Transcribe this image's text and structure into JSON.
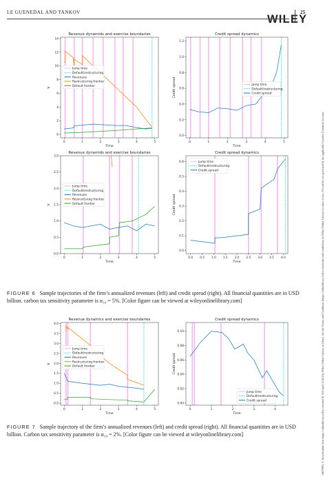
{
  "header": {
    "running_head": "LE GUENEDAL AND TANKOV",
    "publisher": "WILEY",
    "page_number": "25"
  },
  "side_note": "14679965, 0, Downloaded from https://onlinelibrary.wiley.com/doi/10.1111/mafi.12414 by Wiley Online Library on [date]. See the Terms and Conditions (https://onlinelibrary.wiley.com/terms-and-conditions) on Wiley Online Library for rules of use; OA articles are governed by the applicable Creative Commons License",
  "figure6": {
    "label": "FIGURE 6",
    "caption": "Sample trajectories of the firm’s annualized revenues (left) and credit spread (right). All financial quantities are in USD billion. carbon tax sensitivity parameter is α₁₀ = 5%. [Color figure can be viewed at wileyonlinelibrary.com]"
  },
  "figure7": {
    "label": "FIGURE 7",
    "caption": "Sample trajectory of the firm’s annualized revenues (left) and credit spread (right). All financial quantities are in USD billion. Carbon tax sensitivity parameter is α₁₀ = 2%. [Color figure can be viewed at wileyonlinelibrary.com]"
  },
  "colors": {
    "jump": "#f4b6f2",
    "default_restructuring": "#33ddee",
    "revenues": "#1f77b4",
    "restructuring": "#ff7f0e",
    "default": "#2ca02c"
  },
  "chart_data": [
    {
      "id": "fig6-top-left",
      "type": "line",
      "title": "Revenue dynamids and exercise boundaries",
      "xlabel": "Time",
      "ylabel": "V",
      "xlim": [
        -0.2,
        5.2
      ],
      "ylim": [
        -0.5,
        14.2
      ],
      "xticks": [
        0,
        1,
        2,
        3,
        4,
        5
      ],
      "yticks": [
        0,
        2,
        4,
        6,
        8,
        10,
        12,
        14
      ],
      "jump_times": [
        0.05,
        0.55,
        1.0,
        1.6,
        2.15,
        2.8,
        3.25,
        3.8
      ],
      "default_time": 4.85,
      "legend": [
        "Jump time",
        "Default/restructuring",
        "Revenues",
        "Restructuring frontier",
        "Default frontier"
      ],
      "series": [
        {
          "role": "revenues",
          "x": [
            0,
            0.5,
            0.55,
            1.0,
            1.6,
            2.2,
            2.8,
            3.4,
            4.0,
            4.5,
            4.85
          ],
          "y": [
            0.8,
            0.95,
            1.25,
            1.35,
            1.5,
            1.4,
            1.3,
            1.3,
            1.0,
            0.8,
            0.9
          ]
        },
        {
          "role": "restructuring",
          "x": [
            0,
            0.05,
            0.05,
            0.5,
            0.55,
            0.55,
            1.0,
            1.0,
            2.0,
            3.0,
            4.0,
            4.5,
            4.85
          ],
          "y": [
            10.5,
            10.5,
            12.2,
            11.2,
            9.8,
            11.0,
            10.2,
            11.5,
            9.0,
            6.5,
            4.0,
            2.2,
            1.1
          ]
        },
        {
          "role": "default",
          "x": [
            0,
            0.5,
            1.0,
            2.0,
            3.0,
            4.0,
            4.85
          ],
          "y": [
            0.2,
            0.25,
            0.3,
            0.45,
            0.6,
            0.8,
            0.95
          ]
        }
      ]
    },
    {
      "id": "fig6-top-right",
      "type": "line",
      "title": "Credit spread dynamics",
      "xlabel": "Time",
      "ylabel": "Credit spread",
      "xlim": [
        -0.2,
        5.2
      ],
      "ylim": [
        -0.03,
        1.25
      ],
      "xticks": [
        0,
        1,
        2,
        3,
        4,
        5
      ],
      "yticks": [
        0.0,
        0.2,
        0.4,
        0.6,
        0.8,
        1.0,
        1.2
      ],
      "jump_times": [
        0.05,
        0.55,
        1.0,
        1.6,
        2.15,
        2.8,
        3.25,
        3.8
      ],
      "default_time": 4.85,
      "legend": [
        "Jump time",
        "Default/restructuring",
        "Credit spread"
      ],
      "series": [
        {
          "role": "credit",
          "x": [
            0,
            0.5,
            1.0,
            1.5,
            2.0,
            2.5,
            3.0,
            3.5,
            4.0,
            4.3,
            4.6,
            4.85
          ],
          "y": [
            0.33,
            0.3,
            0.29,
            0.35,
            0.34,
            0.32,
            0.38,
            0.4,
            0.55,
            0.62,
            0.8,
            1.15
          ]
        }
      ]
    },
    {
      "id": "fig6-bottom-left",
      "type": "line",
      "title": "Revenue dynamids and exercise boundaries",
      "xlabel": "Time",
      "ylabel": "V",
      "xlim": [
        -0.2,
        5.2
      ],
      "ylim": [
        0,
        3.0
      ],
      "xticks": [
        0,
        1,
        2,
        3,
        4,
        5
      ],
      "yticks": [
        0.0,
        0.5,
        1.0,
        1.5,
        2.0,
        2.5,
        3.0
      ],
      "jump_times": [
        1.05,
        2.5,
        3.05,
        3.75
      ],
      "default_time": 4.1,
      "legend": [
        "Jump time",
        "Default/restructuring",
        "Revenues",
        "Restructuring frontier",
        "Default frontier"
      ],
      "series": [
        {
          "role": "revenues",
          "x": [
            0,
            0.5,
            1.0,
            1.5,
            2.0,
            2.5,
            3.0,
            3.5,
            4.0,
            4.5,
            5.0
          ],
          "y": [
            0.95,
            0.85,
            0.8,
            0.85,
            0.9,
            0.75,
            0.8,
            0.85,
            0.7,
            0.9,
            0.85
          ]
        },
        {
          "role": "restructuring",
          "x": [
            2.6,
            2.65
          ],
          "y": [
            3.0,
            2.65
          ]
        },
        {
          "role": "default",
          "x": [
            0,
            1.0,
            1.05,
            2.5,
            2.5,
            3.0,
            3.05,
            3.75,
            3.75,
            4.5,
            5.0
          ],
          "y": [
            0.15,
            0.15,
            0.2,
            0.3,
            0.5,
            0.55,
            0.95,
            1.0,
            1.0,
            1.2,
            1.45
          ]
        }
      ]
    },
    {
      "id": "fig6-bottom-right",
      "type": "line",
      "title": "Credit spread dynamics",
      "xlabel": "Time",
      "ylabel": "Credit spread",
      "xlim": [
        -0.2,
        4.2
      ],
      "ylim": [
        -0.02,
        0.64
      ],
      "xticks": [
        0.0,
        0.5,
        1.0,
        1.5,
        2.0,
        2.5,
        3.0,
        3.5,
        4.0
      ],
      "yticks": [
        0.0,
        0.1,
        0.2,
        0.3,
        0.4,
        0.5,
        0.6
      ],
      "jump_times": [
        1.05,
        2.5,
        3.05,
        3.75
      ],
      "default_time": 4.1,
      "legend": [
        "Jump time",
        "Default/restructuring",
        "Credit spread"
      ],
      "series": [
        {
          "role": "credit",
          "x": [
            0,
            0.5,
            1.0,
            1.05,
            1.05,
            1.5,
            2.0,
            2.5,
            2.5,
            3.0,
            3.05,
            3.3,
            3.6,
            3.75,
            3.9,
            4.1
          ],
          "y": [
            0.07,
            0.06,
            0.05,
            0.05,
            0.085,
            0.09,
            0.1,
            0.11,
            0.25,
            0.28,
            0.42,
            0.45,
            0.48,
            0.55,
            0.58,
            0.62
          ]
        }
      ]
    },
    {
      "id": "fig7-left",
      "type": "line",
      "title": "Revenue dynamics and exercise boundaries",
      "xlabel": "Time",
      "ylabel": "V",
      "xlim": [
        -0.2,
        5.2
      ],
      "ylim": [
        -0.1,
        4.05
      ],
      "xticks": [
        0,
        1,
        2,
        3,
        4,
        5
      ],
      "yticks": [
        0.0,
        0.5,
        1.0,
        1.5,
        2.0,
        2.5,
        3.0,
        3.5,
        4.0
      ],
      "jump_times": [
        0.1,
        0.2,
        1.45,
        3.5
      ],
      "default_time": 4.4,
      "legend": [
        "Jump time",
        "Default/restructuring",
        "Revenues",
        "Restructuring frontier",
        "Default frontier"
      ],
      "series": [
        {
          "role": "revenues",
          "x": [
            0,
            0.2,
            0.6,
            1.0,
            1.5,
            2.0,
            2.5,
            3.0,
            3.5,
            4.0,
            4.4
          ],
          "y": [
            1.5,
            1.1,
            1.05,
            1.0,
            0.95,
            0.9,
            0.95,
            0.85,
            0.8,
            0.75,
            0.7
          ]
        },
        {
          "role": "restructuring",
          "x": [
            0.1,
            0.1,
            0.2,
            0.2,
            1.45,
            1.45,
            2.5,
            3.5,
            3.5,
            4.4
          ],
          "y": [
            3.6,
            3.9,
            3.7,
            3.8,
            2.9,
            2.8,
            2.0,
            1.4,
            1.2,
            0.9
          ]
        },
        {
          "role": "default",
          "x": [
            0,
            0.2,
            0.2,
            1.45,
            1.45,
            3.5,
            3.5,
            4.4,
            5.0
          ],
          "y": [
            0.2,
            0.2,
            0.3,
            0.3,
            0.22,
            0.15,
            0.12,
            0.06,
            0.7
          ]
        }
      ]
    },
    {
      "id": "fig7-right",
      "type": "line",
      "title": "Credit spread dynamics",
      "xlabel": "Time",
      "ylabel": "Credit spread",
      "xlim": [
        -0.2,
        4.6
      ],
      "ylim": [
        -0.003,
        0.112
      ],
      "xticks": [
        0,
        1,
        2,
        3,
        4
      ],
      "yticks": [
        0.0,
        0.02,
        0.04,
        0.06,
        0.08,
        0.1
      ],
      "jump_times": [
        0.1,
        0.2,
        1.45,
        3.5
      ],
      "default_time": 4.4,
      "legend": [
        "Jump time",
        "Default/restructuring",
        "Credit spread"
      ],
      "series": [
        {
          "role": "credit",
          "x": [
            0,
            0.5,
            1.0,
            1.5,
            1.8,
            2.1,
            2.5,
            2.7,
            3.0,
            3.4,
            3.6,
            3.9,
            4.2,
            4.4
          ],
          "y": [
            0.065,
            0.085,
            0.1,
            0.098,
            0.09,
            0.075,
            0.082,
            0.07,
            0.06,
            0.035,
            0.045,
            0.03,
            0.015,
            0.01
          ]
        }
      ]
    }
  ]
}
